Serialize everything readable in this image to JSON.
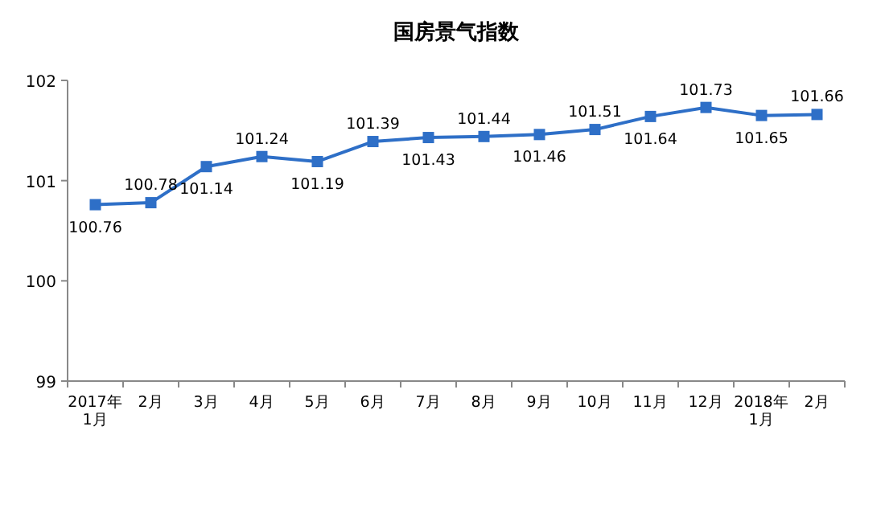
{
  "chart_data": {
    "type": "line",
    "title": "国房景气指数",
    "categories": [
      "2017年\n1月",
      "2月",
      "3月",
      "4月",
      "5月",
      "6月",
      "7月",
      "8月",
      "9月",
      "10月",
      "11月",
      "12月",
      "2018年\n1月",
      "2月"
    ],
    "series": [
      {
        "color": "#2e6fc7",
        "values": [
          100.76,
          100.78,
          101.14,
          101.24,
          101.19,
          101.39,
          101.43,
          101.44,
          101.46,
          101.51,
          101.64,
          101.73,
          101.65,
          101.66
        ]
      }
    ],
    "ylim": [
      99,
      102
    ],
    "yticks": [
      99,
      100,
      101,
      102
    ],
    "marker": "square",
    "line_style": "solid",
    "data_labels": true,
    "grid": false
  }
}
